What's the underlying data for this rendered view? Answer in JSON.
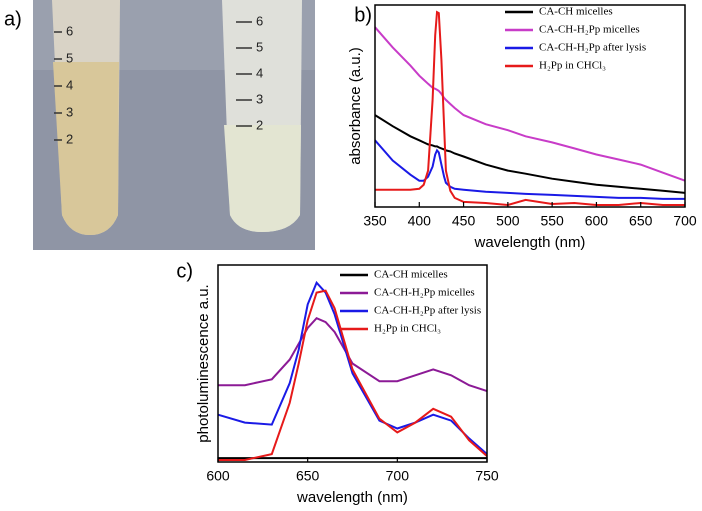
{
  "photo": {
    "label": "a)",
    "left_tube_marks": [
      "6",
      "5",
      "4",
      "3",
      "2"
    ],
    "right_tube_marks": [
      "6",
      "5",
      "4",
      "3",
      "2"
    ]
  },
  "chart_data": [
    {
      "type": "line",
      "label": "b)",
      "x_label": "wavelength (nm)",
      "y_label": "absorbance (a.u.)",
      "x": [
        350,
        370,
        390,
        400,
        405,
        410,
        415,
        418,
        420,
        422,
        425,
        428,
        430,
        435,
        440,
        450,
        475,
        500,
        520,
        550,
        575,
        600,
        625,
        650,
        675,
        700
      ],
      "xlim": [
        350,
        700
      ],
      "xticks": [
        350,
        400,
        450,
        500,
        550,
        600,
        650,
        700
      ],
      "ylim": [
        0,
        1
      ],
      "legend": "upper right",
      "series": [
        {
          "name": "CA-CH micelles",
          "color": "#000000",
          "values": [
            0.455,
            0.4,
            0.35,
            0.33,
            0.32,
            0.31,
            0.305,
            0.3,
            0.3,
            0.295,
            0.29,
            0.285,
            0.28,
            0.275,
            0.265,
            0.25,
            0.21,
            0.18,
            0.165,
            0.14,
            0.125,
            0.11,
            0.1,
            0.09,
            0.08,
            0.07
          ]
        },
        {
          "name": "CA-CH-H₂Pp micelles",
          "color": "#c83cc8",
          "values": [
            0.89,
            0.79,
            0.7,
            0.65,
            0.63,
            0.61,
            0.59,
            0.585,
            0.58,
            0.575,
            0.56,
            0.54,
            0.53,
            0.51,
            0.49,
            0.455,
            0.41,
            0.38,
            0.35,
            0.32,
            0.29,
            0.26,
            0.235,
            0.21,
            0.17,
            0.13
          ]
        },
        {
          "name": "CA-CH-H₂Pp after lysis",
          "color": "#1a1ae6",
          "values": [
            0.33,
            0.23,
            0.16,
            0.13,
            0.13,
            0.15,
            0.2,
            0.26,
            0.28,
            0.27,
            0.21,
            0.15,
            0.12,
            0.1,
            0.09,
            0.085,
            0.075,
            0.07,
            0.065,
            0.06,
            0.055,
            0.05,
            0.045,
            0.045,
            0.04,
            0.04
          ]
        },
        {
          "name": "H₂Pp in CHCl₃",
          "color": "#e61a1a",
          "values": [
            0.085,
            0.085,
            0.085,
            0.09,
            0.11,
            0.18,
            0.53,
            0.85,
            0.965,
            0.96,
            0.73,
            0.4,
            0.18,
            0.08,
            0.045,
            0.025,
            0.02,
            0.01,
            0.035,
            0.015,
            0.02,
            0.01,
            0.01,
            0.02,
            0.01,
            0.01
          ]
        }
      ]
    },
    {
      "type": "line",
      "label": "c)",
      "x_label": "wavelength (nm)",
      "y_label": "photoluminescence a.u.",
      "x": [
        600,
        615,
        630,
        640,
        645,
        650,
        655,
        660,
        665,
        675,
        690,
        700,
        710,
        720,
        730,
        740,
        750
      ],
      "xlim": [
        600,
        750
      ],
      "xticks": [
        600,
        650,
        700,
        750
      ],
      "ylim": [
        0,
        1
      ],
      "legend": "upper right",
      "series": [
        {
          "name": "CA-CH micelles",
          "color": "#000000",
          "values": [
            0.02,
            0.02,
            0.02,
            0.02,
            0.02,
            0.02,
            0.02,
            0.02,
            0.02,
            0.02,
            0.02,
            0.02,
            0.02,
            0.02,
            0.02,
            0.02,
            0.02
          ]
        },
        {
          "name": "CA-CH-H₂Pp micelles",
          "color": "#8c1a96",
          "values": [
            0.39,
            0.39,
            0.42,
            0.52,
            0.6,
            0.68,
            0.73,
            0.71,
            0.66,
            0.5,
            0.41,
            0.41,
            0.44,
            0.47,
            0.44,
            0.39,
            0.36
          ]
        },
        {
          "name": "CA-CH-H₂Pp after lysis",
          "color": "#1a1ae6",
          "values": [
            0.24,
            0.2,
            0.19,
            0.4,
            0.57,
            0.8,
            0.91,
            0.86,
            0.75,
            0.45,
            0.21,
            0.17,
            0.2,
            0.24,
            0.21,
            0.12,
            0.04
          ]
        },
        {
          "name": "H₂Pp in CHCl₃",
          "color": "#e61a1a",
          "values": [
            0.01,
            0.01,
            0.04,
            0.3,
            0.5,
            0.72,
            0.86,
            0.87,
            0.78,
            0.47,
            0.22,
            0.15,
            0.2,
            0.27,
            0.23,
            0.11,
            0.03
          ]
        }
      ]
    }
  ]
}
